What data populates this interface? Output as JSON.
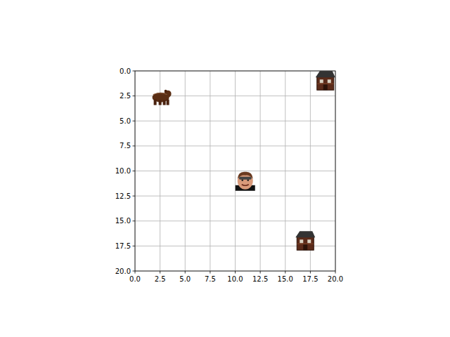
{
  "chart_data": {
    "type": "scatter",
    "series": [
      {
        "marker": "bear",
        "x": [
          2.5
        ],
        "values": [
          2.5
        ]
      },
      {
        "marker": "house",
        "x": [
          19,
          17
        ],
        "values": [
          1,
          17
        ]
      },
      {
        "marker": "person",
        "x": [
          11
        ],
        "values": [
          11
        ]
      }
    ],
    "xlim": [
      0,
      20
    ],
    "ylim": [
      20,
      0
    ],
    "xticks": [
      {
        "value": 0,
        "label": "0.0"
      },
      {
        "value": 2.5,
        "label": "2.5"
      },
      {
        "value": 5,
        "label": "5.0"
      },
      {
        "value": 7.5,
        "label": "7.5"
      },
      {
        "value": 10,
        "label": "10.0"
      },
      {
        "value": 12.5,
        "label": "12.5"
      },
      {
        "value": 15,
        "label": "15.0"
      },
      {
        "value": 17.5,
        "label": "17.5"
      },
      {
        "value": 20,
        "label": "20.0"
      }
    ],
    "yticks": [
      {
        "value": 0,
        "label": "0.0"
      },
      {
        "value": 2.5,
        "label": "2.5"
      },
      {
        "value": 5,
        "label": "5.0"
      },
      {
        "value": 7.5,
        "label": "7.5"
      },
      {
        "value": 10,
        "label": "10.0"
      },
      {
        "value": 12.5,
        "label": "12.5"
      },
      {
        "value": 15,
        "label": "15.0"
      },
      {
        "value": 17.5,
        "label": "17.5"
      },
      {
        "value": 20,
        "label": "20.0"
      }
    ],
    "grid": true
  }
}
